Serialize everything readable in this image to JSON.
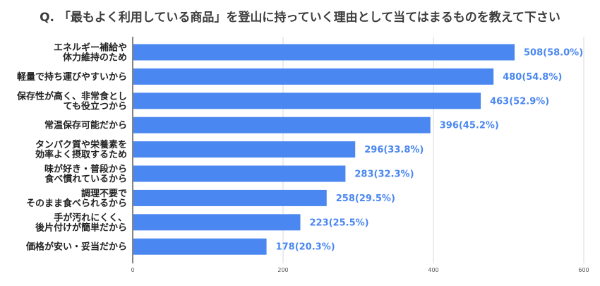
{
  "chart_data": {
    "type": "bar",
    "orientation": "horizontal",
    "title": "Q. 「最もよく利用している商品」を登山に持っていく理由として当てはまるものを教えて下さい",
    "categories": [
      "エネルギー補給や\n体力維持のため",
      "軽量で持ち運びやすいから",
      "保存性が高く、非常食とし\nても役立つから",
      "常温保存可能だから",
      "タンパク質や栄養素を\n効率よく摂取するため",
      "味が好き・普段から\n食べ慣れているから",
      "調理不要で\nそのまま食べられるから",
      "手が汚れにくく、\n後片付けが簡単だから",
      "価格が安い・妥当だから"
    ],
    "values": [
      508,
      480,
      463,
      396,
      296,
      283,
      258,
      223,
      178
    ],
    "data_labels": [
      "508(58.0%)",
      "480(54.8%)",
      "463(52.9%)",
      "396(45.2%)",
      "296(33.8%)",
      "283(32.3%)",
      "258(29.5%)",
      "223(25.5%)",
      "178(20.3%)"
    ],
    "xlim": [
      0,
      600
    ],
    "xticks": [
      0,
      200,
      400,
      600
    ],
    "xlabel": "",
    "ylabel": "",
    "grid": true,
    "colors": {
      "bar": "#4a87f0",
      "label": "#4a87f0",
      "grid": "#d9d9d9",
      "axis": "#333333"
    }
  }
}
